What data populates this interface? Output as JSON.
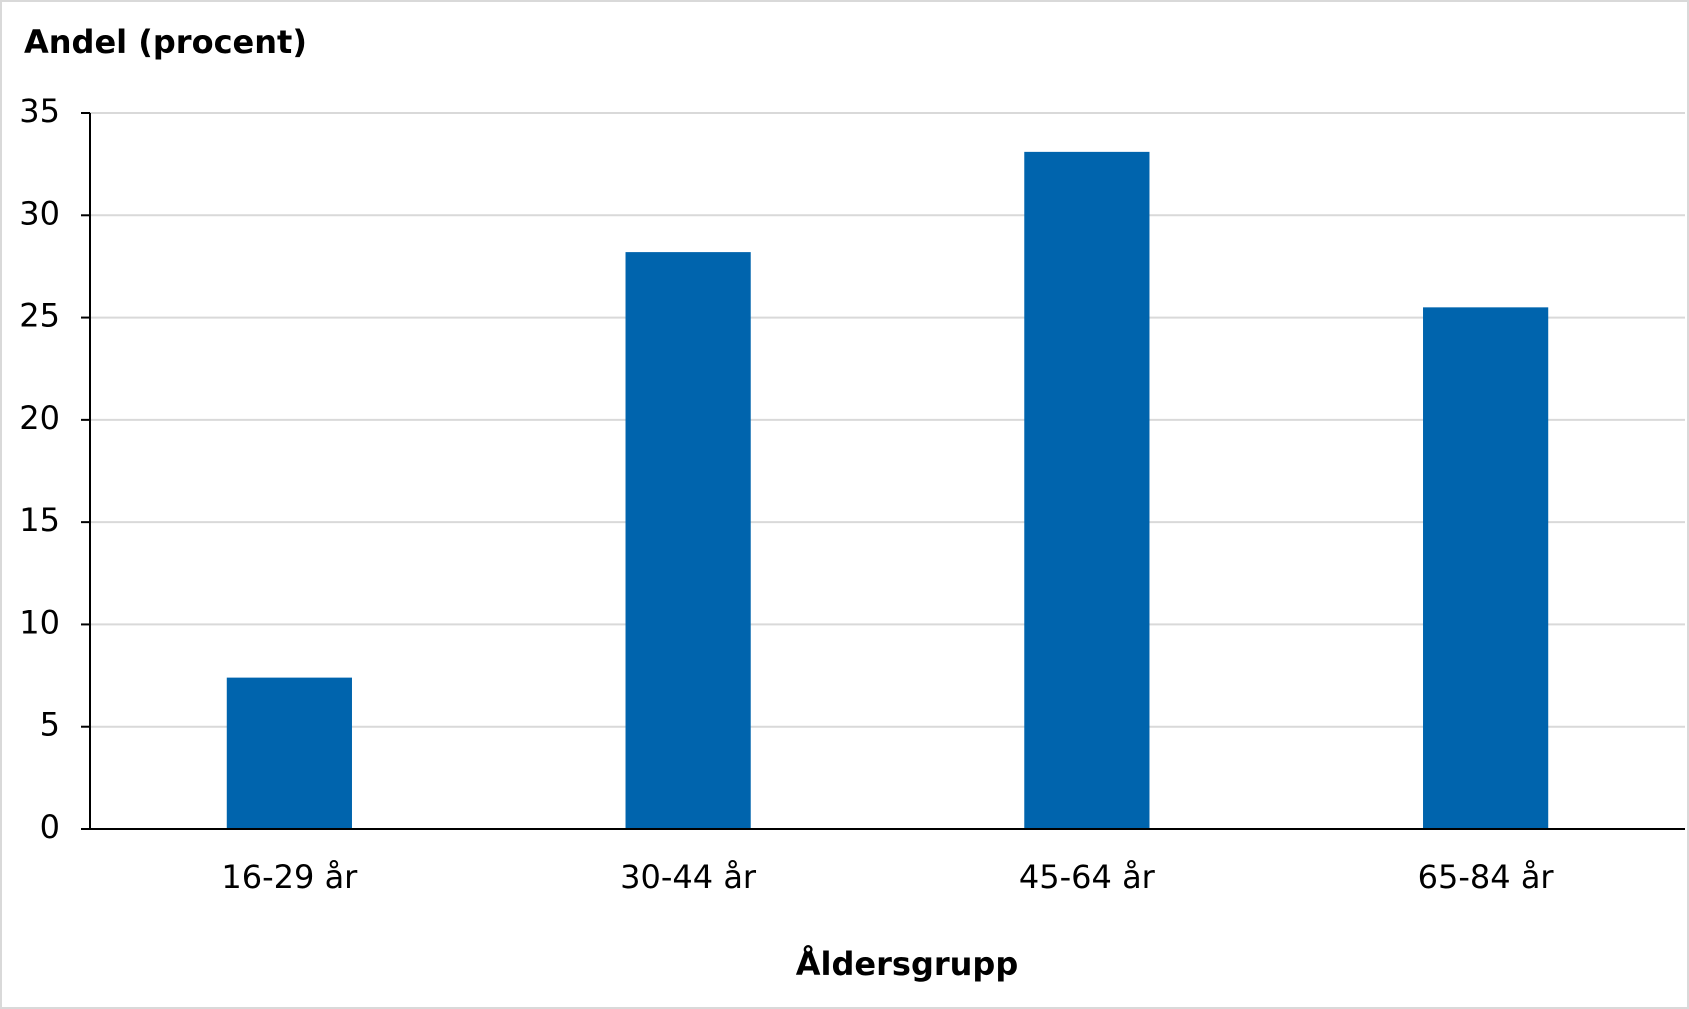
{
  "chart_data": {
    "type": "bar",
    "y_label": "Andel (procent)",
    "x_label": "Åldersgrupp",
    "categories": [
      "16-29 år",
      "30-44 år",
      "45-64 år",
      "65-84 år"
    ],
    "values": [
      7.4,
      28.2,
      33.1,
      25.5
    ],
    "color": "#0064ad",
    "ylim": [
      0,
      35
    ],
    "yticks": [
      0,
      5,
      10,
      15,
      20,
      25,
      30,
      35
    ],
    "grid": true
  }
}
